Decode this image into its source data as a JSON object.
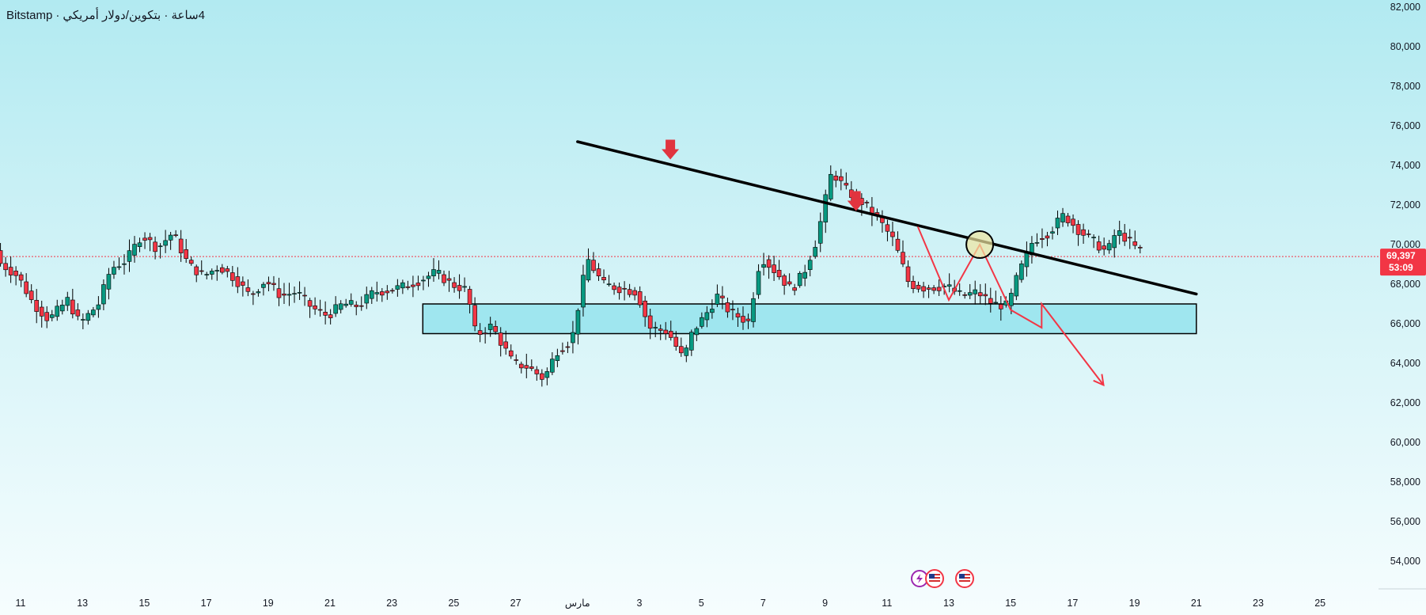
{
  "header": {
    "exchange": "Bitstamp",
    "interval": "4ساعة · بتكوين/دولار أمريكي"
  },
  "price_label": {
    "price": "69,397",
    "countdown": "53:09"
  },
  "colors": {
    "up": "#089981",
    "down": "#f23645",
    "zone_fill": "#9fe6ef",
    "trendline": "#000000",
    "projection": "#f23645",
    "marker": "#e0343f",
    "price_line": "#f23645"
  },
  "chart_data": {
    "type": "candlestick",
    "y_ticks": [
      "82,000",
      "80,000",
      "78,000",
      "76,000",
      "74,000",
      "72,000",
      "70,000",
      "68,000",
      "66,000",
      "64,000",
      "62,000",
      "60,000",
      "58,000",
      "56,000",
      "54,000"
    ],
    "x_ticks": [
      "11",
      "13",
      "15",
      "17",
      "19",
      "21",
      "23",
      "25",
      "27",
      "مارس",
      "3",
      "5",
      "7",
      "9",
      "11",
      "13",
      "15",
      "17",
      "19",
      "21",
      "23",
      "25"
    ],
    "ylim": [
      53000,
      82000
    ],
    "last_price": 69397,
    "annotations": {
      "resistance_trendline": {
        "from": {
          "x": "Mar 1",
          "y": 75200
        },
        "to": {
          "x": "Mar 21",
          "y": 67500
        }
      },
      "support_zone": {
        "from_x": "Feb 24",
        "to_x": "Mar 21",
        "low": 65500,
        "high": 67000
      },
      "arrows_down": [
        {
          "x": "Mar 4",
          "y": 74300
        },
        {
          "x": "Mar 10",
          "y": 71700
        }
      ],
      "circle": {
        "x": "Mar 14",
        "y": 70000
      },
      "projection_path": [
        {
          "x": "Mar 12",
          "y": 70900
        },
        {
          "x": "Mar 13",
          "y": 67200
        },
        {
          "x": "Mar 14",
          "y": 70000
        },
        {
          "x": "Mar 15",
          "y": 66700
        },
        {
          "x": "Mar 16",
          "y": 65800
        },
        {
          "x": "Mar 16",
          "y": 67000
        },
        {
          "x": "Mar 18",
          "y": 62900
        }
      ]
    }
  },
  "event_icons": [
    "lightning-icon",
    "us-flag-icon",
    "us-flag-icon"
  ]
}
